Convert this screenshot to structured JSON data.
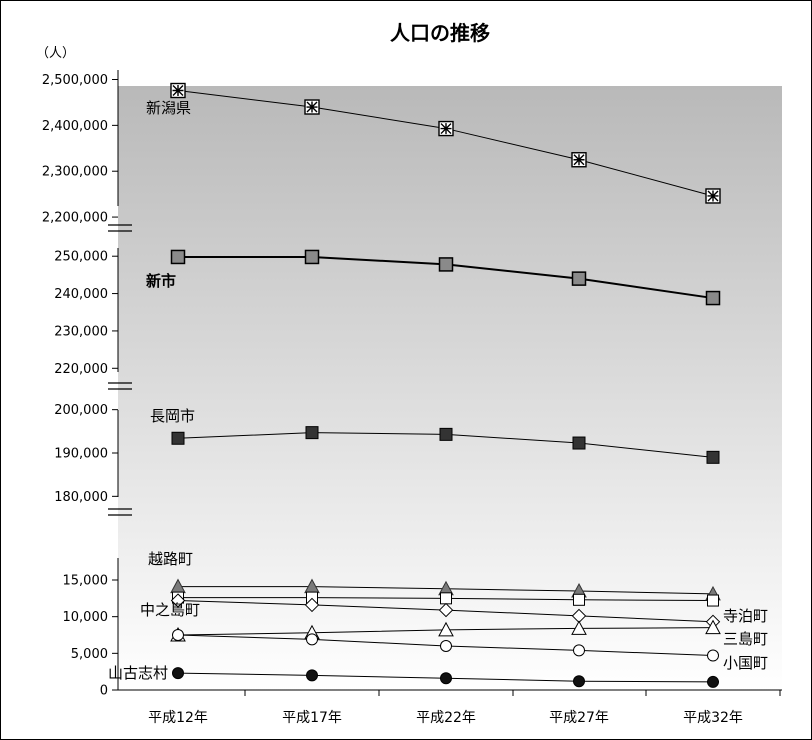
{
  "chart_data": {
    "type": "line",
    "title": "人口の推移",
    "ylabel": "（人）",
    "categories": [
      "平成12年",
      "平成17年",
      "平成22年",
      "平成27年",
      "平成32年"
    ],
    "grid": false,
    "background": "light-to-dark gray gradient",
    "panels": [
      {
        "name": "top",
        "ylim": [
          2150000,
          2500000
        ],
        "yticks": [
          2200000,
          2300000,
          2400000,
          2500000
        ],
        "ytick_labels": [
          "2,200,000",
          "2,300,000",
          "2,400,000",
          "2,500,000"
        ],
        "series": [
          {
            "name": "新潟県",
            "marker": "boxed-asterisk",
            "values": [
              2476000,
              2440000,
              2393000,
              2325000,
              2246000
            ]
          }
        ]
      },
      {
        "name": "upper-middle",
        "ylim": [
          217000,
          253000
        ],
        "yticks": [
          220000,
          230000,
          240000,
          250000
        ],
        "ytick_labels": [
          "220,000",
          "230,000",
          "240,000",
          "250,000"
        ],
        "series": [
          {
            "name": "新市",
            "bold": true,
            "marker": "square-gray",
            "values": [
              249800,
              249800,
              247800,
              244000,
              238800
            ]
          }
        ]
      },
      {
        "name": "lower-middle",
        "ylim": [
          178000,
          202000
        ],
        "yticks": [
          180000,
          190000,
          200000
        ],
        "ytick_labels": [
          "180,000",
          "190,000",
          "200,000"
        ],
        "series": [
          {
            "name": "長岡市",
            "marker": "square-black",
            "values": [
              193400,
              194700,
              194300,
              192300,
              189000
            ]
          }
        ]
      },
      {
        "name": "bottom",
        "ylim": [
          0,
          18000
        ],
        "yticks": [
          0,
          5000,
          10000,
          15000
        ],
        "ytick_labels": [
          "0",
          "5,000",
          "10,000",
          "15,000"
        ],
        "series": [
          {
            "name": "越路町",
            "marker": "triangle-gray",
            "values": [
              14100,
              14100,
              13800,
              13500,
              13100
            ]
          },
          {
            "name": "寺泊町",
            "marker": "square-white",
            "values": [
              12600,
              12600,
              12500,
              12300,
              12200
            ]
          },
          {
            "name": "中之島町",
            "marker": "diamond-white",
            "values": [
              12200,
              11600,
              10900,
              10100,
              9300
            ]
          },
          {
            "name": "三島町",
            "marker": "triangle-white",
            "values": [
              7500,
              7800,
              8200,
              8400,
              8500
            ]
          },
          {
            "name": "小国町",
            "marker": "circle-white",
            "values": [
              7500,
              6900,
              6000,
              5400,
              4700
            ]
          },
          {
            "name": "山古志村",
            "marker": "circle-black",
            "values": [
              2300,
              2000,
              1600,
              1200,
              1100
            ]
          }
        ]
      }
    ]
  }
}
